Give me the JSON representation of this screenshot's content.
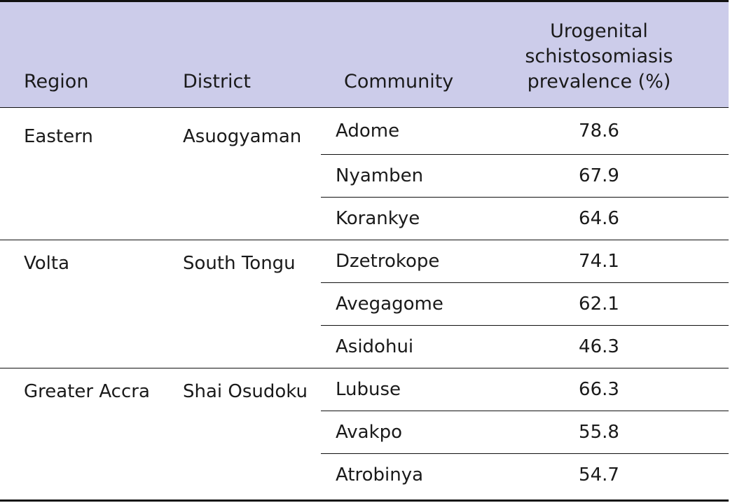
{
  "table": {
    "headers": {
      "region": "Region",
      "district": "District",
      "community": "Community",
      "prevalence_line1": "Urogenital",
      "prevalence_line2": "schistosomiasis",
      "prevalence_line3": "prevalence (%)"
    },
    "groups": [
      {
        "region": "Eastern",
        "district": "Asuogyaman",
        "rows": [
          {
            "community": "Adome",
            "prevalence": "78.6"
          },
          {
            "community": "Nyamben",
            "prevalence": "67.9"
          },
          {
            "community": "Korankye",
            "prevalence": "64.6"
          }
        ]
      },
      {
        "region": "Volta",
        "district": "South Tongu",
        "rows": [
          {
            "community": "Dzetrokope",
            "prevalence": "74.1"
          },
          {
            "community": "Avegagome",
            "prevalence": "62.1"
          },
          {
            "community": "Asidohui",
            "prevalence": "46.3"
          }
        ]
      },
      {
        "region": "Greater Accra",
        "district": "Shai Osudoku",
        "rows": [
          {
            "community": "Lubuse",
            "prevalence": "66.3"
          },
          {
            "community": "Avakpo",
            "prevalence": "55.8"
          },
          {
            "community": "Atrobinya",
            "prevalence": "54.7"
          }
        ]
      }
    ]
  }
}
